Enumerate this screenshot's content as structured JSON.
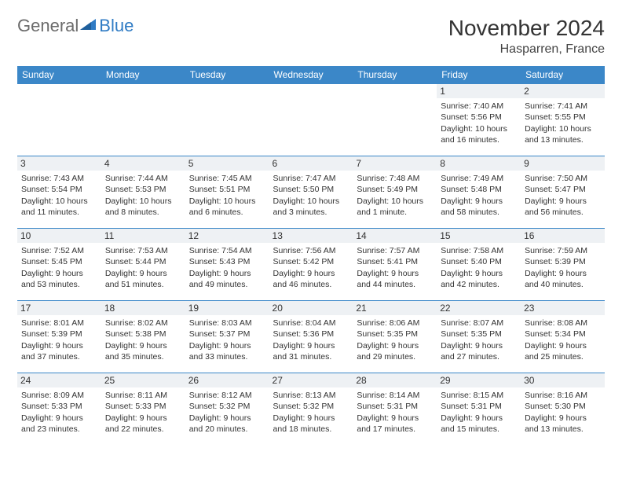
{
  "logo": {
    "gray": "General",
    "blue": "Blue"
  },
  "title": "November 2024",
  "location": "Hasparren, France",
  "weekdays": [
    "Sunday",
    "Monday",
    "Tuesday",
    "Wednesday",
    "Thursday",
    "Friday",
    "Saturday"
  ],
  "colors": {
    "header_bg": "#3b87c8",
    "header_fg": "#ffffff",
    "daynum_bg": "#eef1f4",
    "border": "#3b87c8",
    "logo_gray": "#6b6b6b",
    "logo_blue": "#2f7bc4"
  },
  "weeks": [
    [
      {
        "n": "",
        "sr": "",
        "ss": "",
        "dl": ""
      },
      {
        "n": "",
        "sr": "",
        "ss": "",
        "dl": ""
      },
      {
        "n": "",
        "sr": "",
        "ss": "",
        "dl": ""
      },
      {
        "n": "",
        "sr": "",
        "ss": "",
        "dl": ""
      },
      {
        "n": "",
        "sr": "",
        "ss": "",
        "dl": ""
      },
      {
        "n": "1",
        "sr": "Sunrise: 7:40 AM",
        "ss": "Sunset: 5:56 PM",
        "dl": "Daylight: 10 hours and 16 minutes."
      },
      {
        "n": "2",
        "sr": "Sunrise: 7:41 AM",
        "ss": "Sunset: 5:55 PM",
        "dl": "Daylight: 10 hours and 13 minutes."
      }
    ],
    [
      {
        "n": "3",
        "sr": "Sunrise: 7:43 AM",
        "ss": "Sunset: 5:54 PM",
        "dl": "Daylight: 10 hours and 11 minutes."
      },
      {
        "n": "4",
        "sr": "Sunrise: 7:44 AM",
        "ss": "Sunset: 5:53 PM",
        "dl": "Daylight: 10 hours and 8 minutes."
      },
      {
        "n": "5",
        "sr": "Sunrise: 7:45 AM",
        "ss": "Sunset: 5:51 PM",
        "dl": "Daylight: 10 hours and 6 minutes."
      },
      {
        "n": "6",
        "sr": "Sunrise: 7:47 AM",
        "ss": "Sunset: 5:50 PM",
        "dl": "Daylight: 10 hours and 3 minutes."
      },
      {
        "n": "7",
        "sr": "Sunrise: 7:48 AM",
        "ss": "Sunset: 5:49 PM",
        "dl": "Daylight: 10 hours and 1 minute."
      },
      {
        "n": "8",
        "sr": "Sunrise: 7:49 AM",
        "ss": "Sunset: 5:48 PM",
        "dl": "Daylight: 9 hours and 58 minutes."
      },
      {
        "n": "9",
        "sr": "Sunrise: 7:50 AM",
        "ss": "Sunset: 5:47 PM",
        "dl": "Daylight: 9 hours and 56 minutes."
      }
    ],
    [
      {
        "n": "10",
        "sr": "Sunrise: 7:52 AM",
        "ss": "Sunset: 5:45 PM",
        "dl": "Daylight: 9 hours and 53 minutes."
      },
      {
        "n": "11",
        "sr": "Sunrise: 7:53 AM",
        "ss": "Sunset: 5:44 PM",
        "dl": "Daylight: 9 hours and 51 minutes."
      },
      {
        "n": "12",
        "sr": "Sunrise: 7:54 AM",
        "ss": "Sunset: 5:43 PM",
        "dl": "Daylight: 9 hours and 49 minutes."
      },
      {
        "n": "13",
        "sr": "Sunrise: 7:56 AM",
        "ss": "Sunset: 5:42 PM",
        "dl": "Daylight: 9 hours and 46 minutes."
      },
      {
        "n": "14",
        "sr": "Sunrise: 7:57 AM",
        "ss": "Sunset: 5:41 PM",
        "dl": "Daylight: 9 hours and 44 minutes."
      },
      {
        "n": "15",
        "sr": "Sunrise: 7:58 AM",
        "ss": "Sunset: 5:40 PM",
        "dl": "Daylight: 9 hours and 42 minutes."
      },
      {
        "n": "16",
        "sr": "Sunrise: 7:59 AM",
        "ss": "Sunset: 5:39 PM",
        "dl": "Daylight: 9 hours and 40 minutes."
      }
    ],
    [
      {
        "n": "17",
        "sr": "Sunrise: 8:01 AM",
        "ss": "Sunset: 5:39 PM",
        "dl": "Daylight: 9 hours and 37 minutes."
      },
      {
        "n": "18",
        "sr": "Sunrise: 8:02 AM",
        "ss": "Sunset: 5:38 PM",
        "dl": "Daylight: 9 hours and 35 minutes."
      },
      {
        "n": "19",
        "sr": "Sunrise: 8:03 AM",
        "ss": "Sunset: 5:37 PM",
        "dl": "Daylight: 9 hours and 33 minutes."
      },
      {
        "n": "20",
        "sr": "Sunrise: 8:04 AM",
        "ss": "Sunset: 5:36 PM",
        "dl": "Daylight: 9 hours and 31 minutes."
      },
      {
        "n": "21",
        "sr": "Sunrise: 8:06 AM",
        "ss": "Sunset: 5:35 PM",
        "dl": "Daylight: 9 hours and 29 minutes."
      },
      {
        "n": "22",
        "sr": "Sunrise: 8:07 AM",
        "ss": "Sunset: 5:35 PM",
        "dl": "Daylight: 9 hours and 27 minutes."
      },
      {
        "n": "23",
        "sr": "Sunrise: 8:08 AM",
        "ss": "Sunset: 5:34 PM",
        "dl": "Daylight: 9 hours and 25 minutes."
      }
    ],
    [
      {
        "n": "24",
        "sr": "Sunrise: 8:09 AM",
        "ss": "Sunset: 5:33 PM",
        "dl": "Daylight: 9 hours and 23 minutes."
      },
      {
        "n": "25",
        "sr": "Sunrise: 8:11 AM",
        "ss": "Sunset: 5:33 PM",
        "dl": "Daylight: 9 hours and 22 minutes."
      },
      {
        "n": "26",
        "sr": "Sunrise: 8:12 AM",
        "ss": "Sunset: 5:32 PM",
        "dl": "Daylight: 9 hours and 20 minutes."
      },
      {
        "n": "27",
        "sr": "Sunrise: 8:13 AM",
        "ss": "Sunset: 5:32 PM",
        "dl": "Daylight: 9 hours and 18 minutes."
      },
      {
        "n": "28",
        "sr": "Sunrise: 8:14 AM",
        "ss": "Sunset: 5:31 PM",
        "dl": "Daylight: 9 hours and 17 minutes."
      },
      {
        "n": "29",
        "sr": "Sunrise: 8:15 AM",
        "ss": "Sunset: 5:31 PM",
        "dl": "Daylight: 9 hours and 15 minutes."
      },
      {
        "n": "30",
        "sr": "Sunrise: 8:16 AM",
        "ss": "Sunset: 5:30 PM",
        "dl": "Daylight: 9 hours and 13 minutes."
      }
    ]
  ]
}
